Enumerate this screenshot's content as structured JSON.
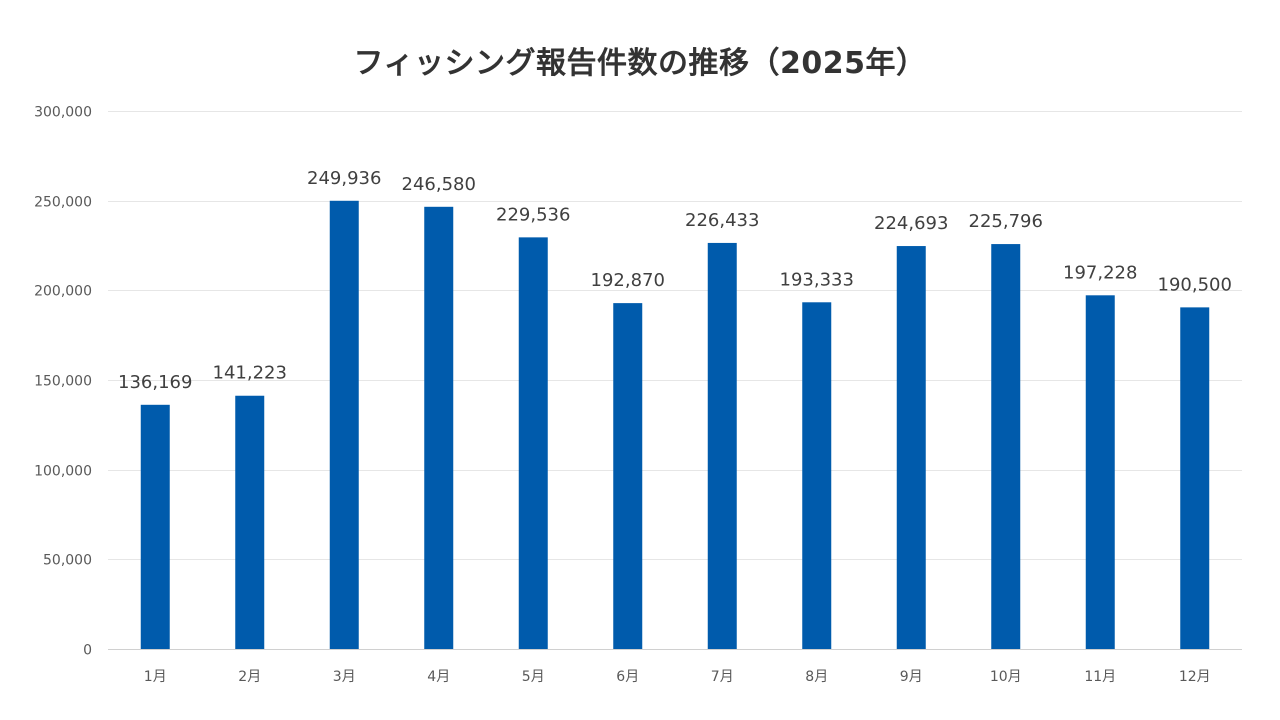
{
  "chart_data": {
    "type": "bar",
    "title": "フィッシング報告件数の推移（2025年）",
    "xlabel": "",
    "ylabel": "",
    "categories": [
      "1月",
      "2月",
      "3月",
      "4月",
      "5月",
      "6月",
      "7月",
      "8月",
      "9月",
      "10月",
      "11月",
      "12月"
    ],
    "values": [
      136169,
      141223,
      249936,
      246580,
      229536,
      192870,
      226433,
      193333,
      224693,
      225796,
      197228,
      190500
    ],
    "data_labels": [
      "136,169",
      "141,223",
      "249,936",
      "246,580",
      "229,536",
      "192,870",
      "226,433",
      "193,333",
      "224,693",
      "225,796",
      "197,228",
      "190,500"
    ],
    "ylim": [
      0,
      300000
    ],
    "y_ticks": [
      0,
      50000,
      100000,
      150000,
      200000,
      250000,
      300000
    ],
    "y_tick_labels": [
      "0",
      "50,000",
      "100,000",
      "150,000",
      "200,000",
      "250,000",
      "300,000"
    ],
    "grid": true,
    "legend": "none",
    "bar_color": "#005bac"
  }
}
